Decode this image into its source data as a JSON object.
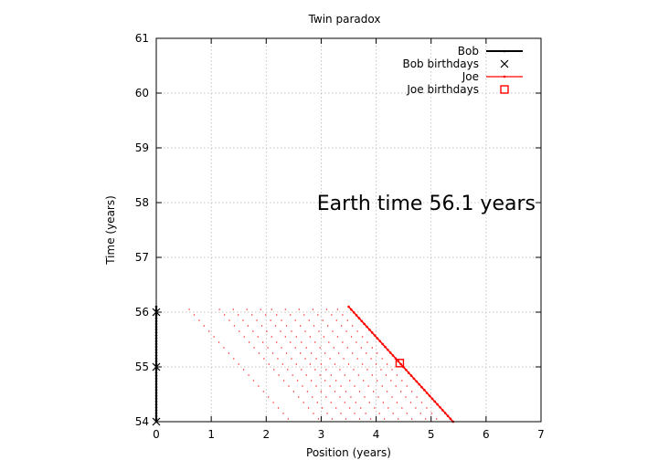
{
  "chart_data": {
    "type": "scatter",
    "title": "Twin paradox",
    "xlabel": "Position (years)",
    "ylabel": "Time (years)",
    "xlim": [
      0,
      7
    ],
    "ylim": [
      54,
      61
    ],
    "xticks": [
      "0",
      "1",
      "2",
      "3",
      "4",
      "5",
      "6",
      "7"
    ],
    "yticks": [
      "54",
      "55",
      "56",
      "57",
      "58",
      "59",
      "60",
      "61"
    ],
    "grid": true,
    "legend_position": "top-right",
    "annotation": {
      "text": "Earth time 56.1 years",
      "x": 6.9,
      "y": 58
    },
    "series": [
      {
        "name": "Bob",
        "style": "line",
        "color": "#000000",
        "x": [
          0,
          0
        ],
        "y": [
          54,
          56.1
        ]
      },
      {
        "name": "Bob birthdays",
        "style": "cross",
        "color": "#000000",
        "x": [
          0,
          0,
          0
        ],
        "y": [
          54,
          55,
          56
        ]
      },
      {
        "name": "Joe",
        "style": "line",
        "color": "#ff0000",
        "x": [
          3.5,
          5.4
        ],
        "y": [
          56.1,
          54
        ]
      },
      {
        "name": "Joe birthdays",
        "style": "square",
        "color": "#ff0000",
        "x": [
          4.43
        ],
        "y": [
          55.07
        ]
      }
    ],
    "background_trails": {
      "color": "#ff0000",
      "end_time": 56.05,
      "end_x": [
        0.6,
        1.15,
        1.4,
        1.65,
        1.9,
        2.1,
        2.35,
        2.6,
        2.85,
        3.1,
        3.3
      ],
      "x_per_year": 0.9
    }
  }
}
